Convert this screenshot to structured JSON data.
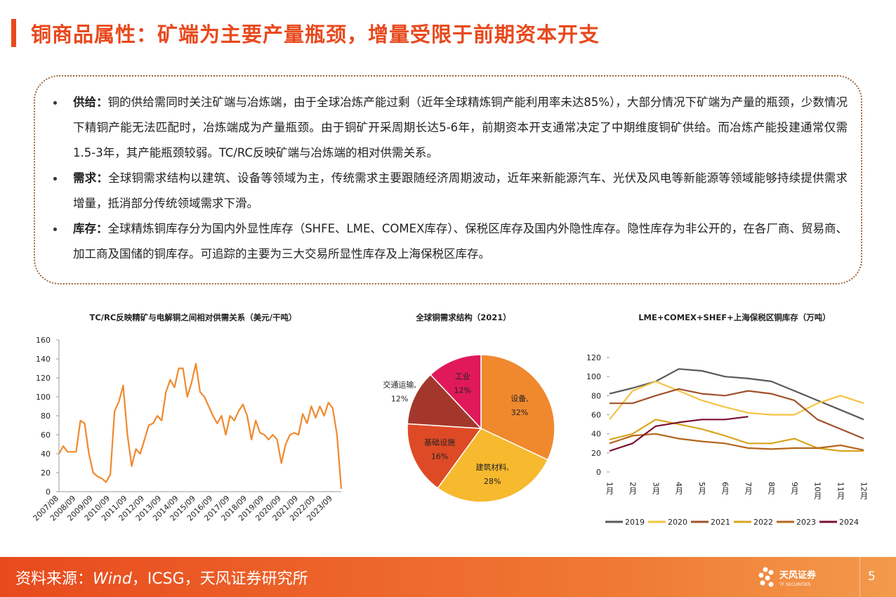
{
  "header": {
    "title": "铜商品属性：矿端为主要产量瓶颈，增量受限于前期资本开支"
  },
  "bullets": [
    {
      "label": "供给：",
      "text": "铜的供给需同时关注矿端与冶炼端，由于全球冶炼产能过剩（近年全球精炼铜产能利用率未达85%），大部分情况下矿端为产量的瓶颈，少数情况下精铜产能无法匹配时，冶炼端成为产量瓶颈。由于铜矿开采周期长达5-6年，前期资本开支通常决定了中期维度铜矿供给。而冶炼产能投建通常仅需1.5-3年，其产能瓶颈较弱。TC/RC反映矿端与冶炼端的相对供需关系。"
    },
    {
      "label": "需求：",
      "text": "全球铜需求结构以建筑、设备等领域为主，传统需求主要跟随经济周期波动，近年来新能源汽车、光伏及风电等新能源等领域能够持续提供需求增量，抵消部分传统领域需求下滑。"
    },
    {
      "label": "库存：",
      "text": "全球精炼铜库存分为国内外显性库存（SHFE、LME、COMEX库存）、保税区库存及国内外隐性库存。隐性库存为非公开的，在各厂商、贸易商、加工商及国储的铜库存。可追踪的主要为三大交易所显性库存及上海保税区库存。"
    }
  ],
  "chart_data": [
    {
      "type": "line",
      "title": "TC/RC反映精矿与电解铜之间相对供需关系（美元/干吨）",
      "categories": [
        "2007/08",
        null,
        null,
        null,
        "2008/09",
        null,
        null,
        null,
        "2009/09",
        null,
        null,
        null,
        "2010/09",
        null,
        null,
        null,
        "2011/09",
        null,
        null,
        null,
        "2012/09",
        null,
        null,
        null,
        "2013/09",
        null,
        null,
        null,
        "2014/09",
        null,
        null,
        null,
        "2015/09",
        null,
        null,
        null,
        "2016/09",
        null,
        null,
        null,
        "2017/09",
        null,
        null,
        null,
        "2018/09",
        null,
        null,
        null,
        "2019/09",
        null,
        null,
        null,
        "2020/09",
        null,
        null,
        null,
        "2021/09",
        null,
        null,
        null,
        "2022/09",
        null,
        null,
        null,
        "2023/09",
        null,
        null
      ],
      "series": [
        {
          "name": "TC/RC",
          "color": "#f0892e",
          "values": [
            40,
            48,
            42,
            42,
            42,
            75,
            72,
            40,
            20,
            16,
            14,
            10,
            18,
            85,
            95,
            112,
            60,
            27,
            45,
            40,
            55,
            70,
            72,
            80,
            75,
            105,
            118,
            110,
            130,
            130,
            100,
            115,
            135,
            105,
            100,
            90,
            80,
            72,
            80,
            60,
            80,
            75,
            85,
            92,
            80,
            55,
            75,
            62,
            60,
            55,
            60,
            55,
            30,
            50,
            60,
            62,
            60,
            82,
            72,
            90,
            78,
            90,
            80,
            94,
            88,
            60,
            3
          ]
        }
      ],
      "ylim": [
        0,
        160
      ],
      "yticks": [
        0,
        20,
        40,
        60,
        80,
        100,
        120,
        140,
        160
      ],
      "grid": false
    },
    {
      "type": "pie",
      "title": "全球铜需求结构（2021）",
      "categories": [
        "设备,",
        "建筑材料,",
        "基础设施",
        "交通运输,",
        "工业"
      ],
      "values": [
        32,
        28,
        16,
        12,
        12
      ],
      "value_labels": [
        "32%",
        "28%",
        "16%",
        "12%",
        "12%"
      ],
      "colors": [
        "#f0892e",
        "#f7b92e",
        "#de4a26",
        "#a3372b",
        "#e0195a"
      ]
    },
    {
      "type": "line",
      "title": "LME+COMEX+SHEF+上海保税区铜库存（万吨）",
      "categories": [
        "1月",
        "2月",
        "3月",
        "4月",
        "5月",
        "6月",
        "7月",
        "8月",
        "9月",
        "10月",
        "11月",
        "12月"
      ],
      "series": [
        {
          "name": "2019",
          "color": "#5a5a5a",
          "values": [
            82,
            88,
            95,
            108,
            106,
            100,
            98,
            95,
            85,
            75,
            65,
            55
          ]
        },
        {
          "name": "2020",
          "color": "#f5c342",
          "values": [
            55,
            85,
            95,
            85,
            75,
            68,
            62,
            60,
            60,
            72,
            80,
            72
          ]
        },
        {
          "name": "2021",
          "color": "#a0522d",
          "values": [
            72,
            72,
            80,
            87,
            82,
            80,
            85,
            82,
            75,
            55,
            45,
            35
          ]
        },
        {
          "name": "2022",
          "color": "#d9a520",
          "values": [
            34,
            40,
            55,
            50,
            45,
            38,
            30,
            30,
            35,
            25,
            22,
            22
          ]
        },
        {
          "name": "2023",
          "color": "#b5651d",
          "values": [
            30,
            38,
            40,
            35,
            32,
            30,
            25,
            24,
            25,
            25,
            28,
            23
          ]
        },
        {
          "name": "2024",
          "color": "#7b1030",
          "values": [
            22,
            30,
            48,
            52,
            55,
            55,
            58,
            null,
            null,
            null,
            null,
            null
          ]
        }
      ],
      "ylim": [
        0,
        120
      ],
      "yticks": [
        0,
        20,
        40,
        60,
        80,
        100,
        120
      ],
      "grid": false
    }
  ],
  "footer": {
    "source": [
      "资料来源：",
      "Wind",
      "，ICSG，天风证券研究所"
    ],
    "logo": "天风证券",
    "logo_sub": "TF SECURITIES",
    "page": "5"
  }
}
